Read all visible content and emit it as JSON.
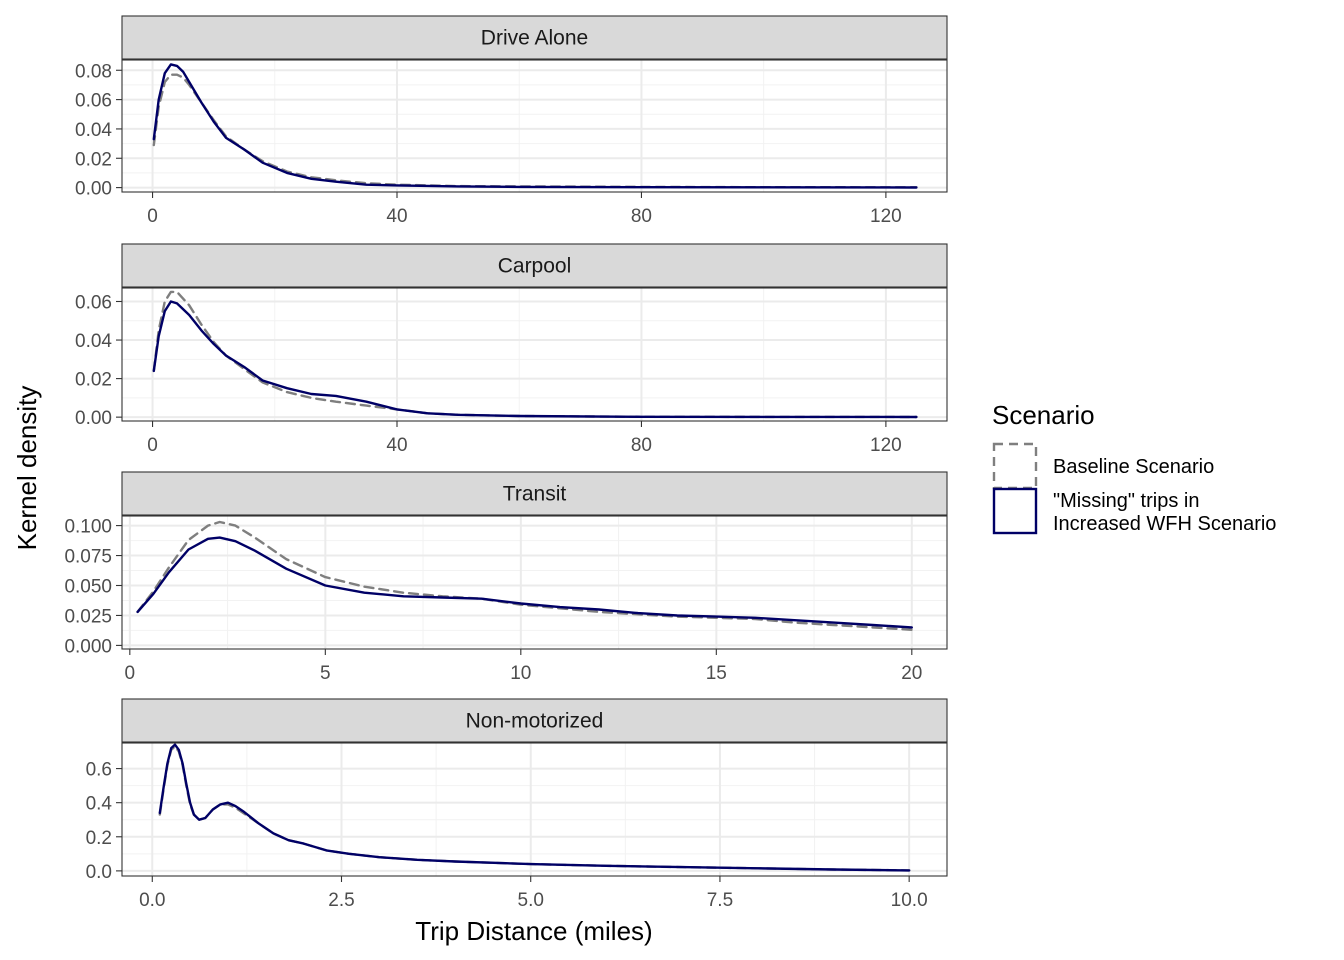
{
  "chart_data": {
    "type": "line",
    "xlabel": "Trip Distance (miles)",
    "ylabel": "Kernel density",
    "legend": {
      "title": "Scenario",
      "position": "right",
      "entries": [
        {
          "key": "baseline",
          "lines": [
            "Baseline Scenario"
          ],
          "color": "#7f7f7f",
          "dash": true
        },
        {
          "key": "missing",
          "lines": [
            "\"Missing\" trips in",
            "Increased WFH Scenario"
          ],
          "color": "#000066",
          "dash": false
        }
      ]
    },
    "grid": true,
    "facets": [
      {
        "title": "Drive Alone",
        "xlim": [
          -5,
          130
        ],
        "ylim": [
          -0.003,
          0.087
        ],
        "xticks": [
          0,
          40,
          80,
          120
        ],
        "xtick_labels": [
          "0",
          "40",
          "80",
          "120"
        ],
        "yticks": [
          0,
          0.02,
          0.04,
          0.06,
          0.08
        ],
        "ytick_labels": [
          "0.00",
          "0.02",
          "0.04",
          "0.06",
          "0.08"
        ],
        "series": [
          {
            "name": "Baseline Scenario",
            "points": [
              [
                0.2,
                0.029
              ],
              [
                1,
                0.055
              ],
              [
                2,
                0.072
              ],
              [
                3,
                0.077
              ],
              [
                4,
                0.077
              ],
              [
                5,
                0.075
              ],
              [
                6,
                0.07
              ],
              [
                8,
                0.058
              ],
              [
                10,
                0.046
              ],
              [
                12,
                0.035
              ],
              [
                15,
                0.026
              ],
              [
                18,
                0.018
              ],
              [
                22,
                0.011
              ],
              [
                26,
                0.007
              ],
              [
                30,
                0.005
              ],
              [
                35,
                0.003
              ],
              [
                40,
                0.002
              ],
              [
                50,
                0.001
              ],
              [
                60,
                0.0008
              ],
              [
                80,
                0.0005
              ],
              [
                100,
                0.0003
              ],
              [
                125,
                0.0002
              ]
            ]
          },
          {
            "name": "\"Missing\" trips in Increased WFH Scenario",
            "points": [
              [
                0.2,
                0.033
              ],
              [
                1,
                0.06
              ],
              [
                2,
                0.078
              ],
              [
                3,
                0.084
              ],
              [
                4,
                0.083
              ],
              [
                5,
                0.079
              ],
              [
                6,
                0.072
              ],
              [
                8,
                0.058
              ],
              [
                10,
                0.045
              ],
              [
                12,
                0.034
              ],
              [
                15,
                0.026
              ],
              [
                18,
                0.017
              ],
              [
                22,
                0.01
              ],
              [
                26,
                0.006
              ],
              [
                30,
                0.004
              ],
              [
                35,
                0.002
              ],
              [
                40,
                0.0015
              ],
              [
                50,
                0.0008
              ],
              [
                60,
                0.0005
              ],
              [
                80,
                0.0003
              ],
              [
                100,
                0.0002
              ],
              [
                125,
                0.0001
              ]
            ]
          }
        ]
      },
      {
        "title": "Carpool",
        "xlim": [
          -5,
          130
        ],
        "ylim": [
          -0.002,
          0.067
        ],
        "xticks": [
          0,
          40,
          80,
          120
        ],
        "xtick_labels": [
          "0",
          "40",
          "80",
          "120"
        ],
        "yticks": [
          0,
          0.02,
          0.04,
          0.06
        ],
        "ytick_labels": [
          "0.00",
          "0.02",
          "0.04",
          "0.06"
        ],
        "series": [
          {
            "name": "Baseline Scenario",
            "points": [
              [
                0.2,
                0.024
              ],
              [
                1,
                0.045
              ],
              [
                2,
                0.06
              ],
              [
                3,
                0.065
              ],
              [
                4,
                0.065
              ],
              [
                6,
                0.058
              ],
              [
                8,
                0.048
              ],
              [
                10,
                0.039
              ],
              [
                12,
                0.032
              ],
              [
                15,
                0.025
              ],
              [
                18,
                0.018
              ],
              [
                22,
                0.013
              ],
              [
                26,
                0.01
              ],
              [
                30,
                0.008
              ],
              [
                35,
                0.006
              ],
              [
                40,
                0.004
              ],
              [
                45,
                0.002
              ],
              [
                50,
                0.0012
              ],
              [
                60,
                0.0006
              ],
              [
                80,
                0.0002
              ],
              [
                125,
                0.0001
              ]
            ]
          },
          {
            "name": "\"Missing\" trips in Increased WFH Scenario",
            "points": [
              [
                0.2,
                0.024
              ],
              [
                1,
                0.042
              ],
              [
                2,
                0.055
              ],
              [
                3,
                0.06
              ],
              [
                4,
                0.059
              ],
              [
                6,
                0.053
              ],
              [
                8,
                0.045
              ],
              [
                10,
                0.038
              ],
              [
                12,
                0.032
              ],
              [
                15,
                0.026
              ],
              [
                18,
                0.019
              ],
              [
                22,
                0.015
              ],
              [
                26,
                0.012
              ],
              [
                30,
                0.011
              ],
              [
                35,
                0.008
              ],
              [
                40,
                0.004
              ],
              [
                45,
                0.002
              ],
              [
                50,
                0.0012
              ],
              [
                60,
                0.0006
              ],
              [
                80,
                0.0002
              ],
              [
                125,
                0.0001
              ]
            ]
          }
        ]
      },
      {
        "title": "Transit",
        "xlim": [
          -0.2,
          20.9
        ],
        "ylim": [
          -0.003,
          0.108
        ],
        "xticks": [
          0,
          5,
          10,
          15,
          20
        ],
        "xtick_labels": [
          "0",
          "5",
          "10",
          "15",
          "20"
        ],
        "yticks": [
          0,
          0.025,
          0.05,
          0.075,
          0.1
        ],
        "ytick_labels": [
          "0.000",
          "0.025",
          "0.050",
          "0.075",
          "0.100"
        ],
        "series": [
          {
            "name": "Baseline Scenario",
            "points": [
              [
                0.2,
                0.028
              ],
              [
                0.6,
                0.045
              ],
              [
                1,
                0.065
              ],
              [
                1.5,
                0.088
              ],
              [
                2,
                0.1
              ],
              [
                2.3,
                0.103
              ],
              [
                2.7,
                0.1
              ],
              [
                3.2,
                0.09
              ],
              [
                4,
                0.072
              ],
              [
                5,
                0.057
              ],
              [
                6,
                0.049
              ],
              [
                7,
                0.044
              ],
              [
                8,
                0.041
              ],
              [
                9,
                0.039
              ],
              [
                10,
                0.034
              ],
              [
                11,
                0.031
              ],
              [
                12,
                0.028
              ],
              [
                13,
                0.026
              ],
              [
                14,
                0.024
              ],
              [
                15,
                0.023
              ],
              [
                16,
                0.022
              ],
              [
                17,
                0.019
              ],
              [
                18,
                0.017
              ],
              [
                19,
                0.015
              ],
              [
                20,
                0.013
              ]
            ]
          },
          {
            "name": "\"Missing\" trips in Increased WFH Scenario",
            "points": [
              [
                0.2,
                0.028
              ],
              [
                0.6,
                0.043
              ],
              [
                1,
                0.061
              ],
              [
                1.5,
                0.08
              ],
              [
                2,
                0.089
              ],
              [
                2.3,
                0.09
              ],
              [
                2.7,
                0.087
              ],
              [
                3.2,
                0.079
              ],
              [
                4,
                0.064
              ],
              [
                5,
                0.05
              ],
              [
                6,
                0.044
              ],
              [
                7,
                0.041
              ],
              [
                8,
                0.04
              ],
              [
                9,
                0.039
              ],
              [
                10,
                0.035
              ],
              [
                11,
                0.032
              ],
              [
                12,
                0.03
              ],
              [
                13,
                0.027
              ],
              [
                14,
                0.025
              ],
              [
                15,
                0.024
              ],
              [
                16,
                0.023
              ],
              [
                17,
                0.021
              ],
              [
                18,
                0.019
              ],
              [
                19,
                0.017
              ],
              [
                20,
                0.015
              ]
            ]
          }
        ]
      },
      {
        "title": "Non-motorized",
        "xlim": [
          -0.4,
          10.5
        ],
        "ylim": [
          -0.03,
          0.75
        ],
        "xticks": [
          0,
          2.5,
          5,
          7.5,
          10
        ],
        "xtick_labels": [
          "0.0",
          "2.5",
          "5.0",
          "7.5",
          "10.0"
        ],
        "yticks": [
          0,
          0.2,
          0.4,
          0.6
        ],
        "ytick_labels": [
          "0.0",
          "0.2",
          "0.4",
          "0.6"
        ],
        "series": [
          {
            "name": "Baseline Scenario",
            "points": [
              [
                0.1,
                0.33
              ],
              [
                0.15,
                0.48
              ],
              [
                0.2,
                0.62
              ],
              [
                0.25,
                0.71
              ],
              [
                0.3,
                0.73
              ],
              [
                0.35,
                0.7
              ],
              [
                0.4,
                0.62
              ],
              [
                0.45,
                0.5
              ],
              [
                0.5,
                0.39
              ],
              [
                0.55,
                0.33
              ],
              [
                0.62,
                0.3
              ],
              [
                0.7,
                0.31
              ],
              [
                0.8,
                0.36
              ],
              [
                0.9,
                0.39
              ],
              [
                1,
                0.39
              ],
              [
                1.1,
                0.37
              ],
              [
                1.2,
                0.34
              ],
              [
                1.4,
                0.28
              ],
              [
                1.6,
                0.22
              ],
              [
                1.8,
                0.18
              ],
              [
                2,
                0.16
              ],
              [
                2.3,
                0.12
              ],
              [
                2.6,
                0.1
              ],
              [
                3,
                0.08
              ],
              [
                3.5,
                0.065
              ],
              [
                4,
                0.055
              ],
              [
                5,
                0.04
              ],
              [
                6,
                0.03
              ],
              [
                7,
                0.022
              ],
              [
                8,
                0.015
              ],
              [
                9,
                0.008
              ],
              [
                10,
                0.003
              ]
            ]
          },
          {
            "name": "\"Missing\" trips in Increased WFH Scenario",
            "points": [
              [
                0.1,
                0.34
              ],
              [
                0.15,
                0.49
              ],
              [
                0.2,
                0.63
              ],
              [
                0.25,
                0.72
              ],
              [
                0.3,
                0.74
              ],
              [
                0.35,
                0.71
              ],
              [
                0.4,
                0.63
              ],
              [
                0.45,
                0.51
              ],
              [
                0.5,
                0.4
              ],
              [
                0.55,
                0.33
              ],
              [
                0.62,
                0.3
              ],
              [
                0.7,
                0.31
              ],
              [
                0.8,
                0.36
              ],
              [
                0.9,
                0.39
              ],
              [
                1,
                0.4
              ],
              [
                1.1,
                0.38
              ],
              [
                1.2,
                0.35
              ],
              [
                1.4,
                0.28
              ],
              [
                1.6,
                0.22
              ],
              [
                1.8,
                0.18
              ],
              [
                2,
                0.16
              ],
              [
                2.3,
                0.12
              ],
              [
                2.6,
                0.1
              ],
              [
                3,
                0.08
              ],
              [
                3.5,
                0.065
              ],
              [
                4,
                0.055
              ],
              [
                5,
                0.04
              ],
              [
                6,
                0.03
              ],
              [
                7,
                0.022
              ],
              [
                8,
                0.015
              ],
              [
                9,
                0.008
              ],
              [
                10,
                0.003
              ]
            ]
          }
        ]
      }
    ]
  }
}
